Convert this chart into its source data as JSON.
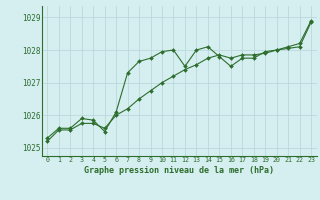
{
  "xlabel": "Graphe pression niveau de la mer (hPa)",
  "bg_color": "#d5eef0",
  "grid_color": "#b8d4d8",
  "line_color": "#2d6e2d",
  "marker_color": "#2d6e2d",
  "ylim": [
    1024.75,
    1029.35
  ],
  "yticks": [
    1025,
    1026,
    1027,
    1028,
    1029
  ],
  "xlim": [
    -0.5,
    23.5
  ],
  "xticks": [
    0,
    1,
    2,
    3,
    4,
    5,
    6,
    7,
    8,
    9,
    10,
    11,
    12,
    13,
    14,
    15,
    16,
    17,
    18,
    19,
    20,
    21,
    22,
    23
  ],
  "series1_x": [
    0,
    1,
    2,
    3,
    4,
    5,
    6,
    7,
    8,
    9,
    10,
    11,
    12,
    13,
    14,
    15,
    16,
    17,
    18,
    19,
    20,
    21,
    22,
    23
  ],
  "series1_y": [
    1025.3,
    1025.6,
    1025.6,
    1025.9,
    1025.85,
    1025.5,
    1026.1,
    1027.3,
    1027.65,
    1027.75,
    1027.95,
    1028.0,
    1027.5,
    1028.0,
    1028.1,
    1027.8,
    1027.5,
    1027.75,
    1027.75,
    1027.95,
    1028.0,
    1028.1,
    1028.2,
    1028.9
  ],
  "series2_x": [
    0,
    1,
    2,
    3,
    4,
    5,
    6,
    7,
    8,
    9,
    10,
    11,
    12,
    13,
    14,
    15,
    16,
    17,
    18,
    19,
    20,
    21,
    22,
    23
  ],
  "series2_y": [
    1025.2,
    1025.55,
    1025.55,
    1025.75,
    1025.75,
    1025.6,
    1026.0,
    1026.2,
    1026.5,
    1026.75,
    1027.0,
    1027.2,
    1027.4,
    1027.55,
    1027.75,
    1027.85,
    1027.75,
    1027.85,
    1027.85,
    1027.9,
    1028.0,
    1028.05,
    1028.1,
    1028.85
  ]
}
